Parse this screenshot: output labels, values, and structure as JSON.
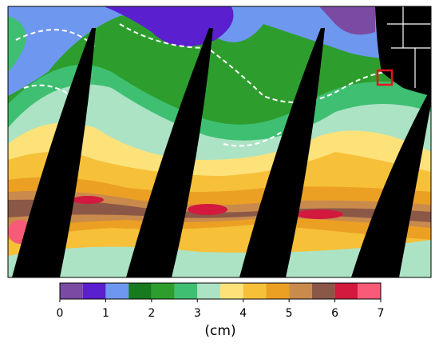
{
  "colorbar": {
    "label": "(cm)",
    "ticks": [
      0,
      1,
      2,
      3,
      4,
      5,
      6,
      7
    ],
    "bounds": [
      0,
      0.5,
      1,
      1.5,
      2,
      2.5,
      3,
      3.5,
      4,
      4.5,
      5,
      5.5,
      6,
      6.5,
      7
    ],
    "colors": [
      "#7b4aa3",
      "#5a1fcf",
      "#6e97f0",
      "#177a1f",
      "#2d9e2d",
      "#3fbf72",
      "#ace3c4",
      "#fde27a",
      "#f6c039",
      "#eba023",
      "#c98a4c",
      "#8b5848",
      "#d3193e",
      "#f85a78"
    ]
  }
}
